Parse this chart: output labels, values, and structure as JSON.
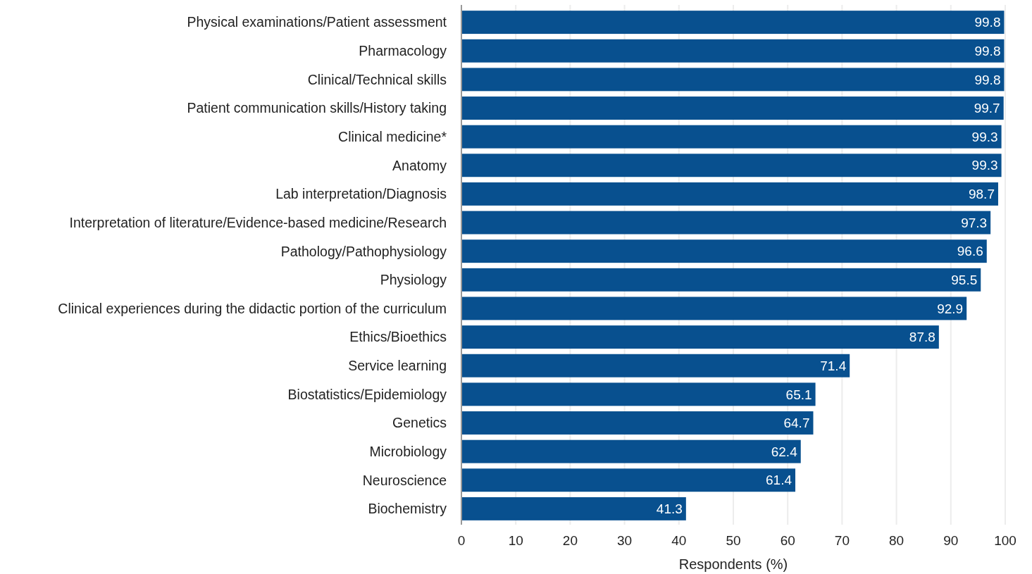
{
  "chart_data": {
    "type": "bar",
    "orientation": "horizontal",
    "xlabel": "Respondents (%)",
    "categories": [
      "Physical examinations/Patient assessment",
      "Pharmacology",
      "Clinical/Technical skills",
      "Patient communication skills/History taking",
      "Clinical medicine*",
      "Anatomy",
      "Lab interpretation/Diagnosis",
      "Interpretation of literature/Evidence-based medicine/Research",
      "Pathology/Pathophysiology",
      "Physiology",
      "Clinical experiences during the didactic portion of the curriculum",
      "Ethics/Bioethics",
      "Service learning",
      "Biostatistics/Epidemiology",
      "Genetics",
      "Microbiology",
      "Neuroscience",
      "Biochemistry"
    ],
    "values": [
      99.8,
      99.8,
      99.8,
      99.7,
      99.3,
      99.3,
      98.7,
      97.3,
      96.6,
      95.5,
      92.9,
      87.8,
      71.4,
      65.1,
      64.7,
      62.4,
      61.4,
      41.3
    ],
    "color": "#08508f",
    "xlim": [
      0,
      100
    ],
    "xticks": [
      0,
      10,
      20,
      30,
      40,
      50,
      60,
      70,
      80,
      90,
      100
    ],
    "grid": "x",
    "data_labels": true
  }
}
